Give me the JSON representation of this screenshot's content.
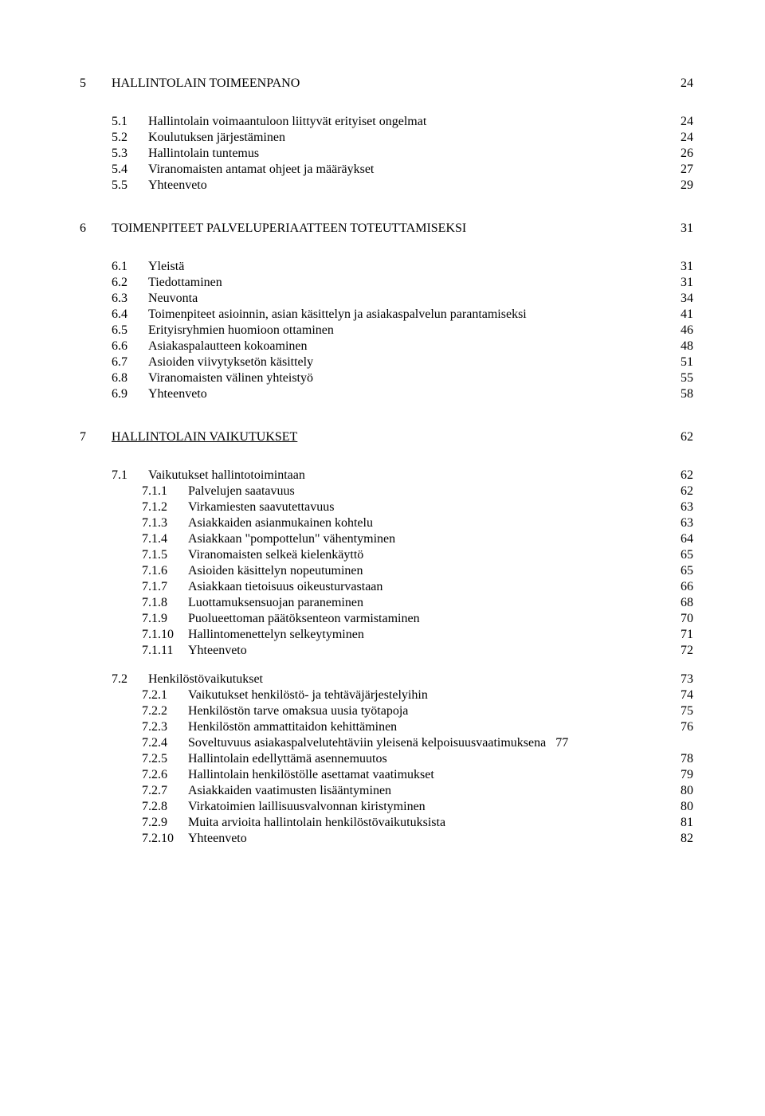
{
  "chapters": [
    {
      "num": "5",
      "title": "HALLINTOLAIN TOIMEENPANO",
      "page": "24",
      "underline": false,
      "sections": [
        {
          "num": "5.1",
          "title": "Hallintolain voimaantuloon liittyvät erityiset ongelmat",
          "page": "24"
        },
        {
          "num": "5.2",
          "title": "Koulutuksen järjestäminen",
          "page": "24"
        },
        {
          "num": "5.3",
          "title": "Hallintolain tuntemus",
          "page": "26"
        },
        {
          "num": "5.4",
          "title": "Viranomaisten antamat ohjeet ja määräykset",
          "page": "27"
        },
        {
          "num": "5.5",
          "title": "Yhteenveto",
          "page": "29"
        }
      ]
    },
    {
      "num": "6",
      "title": "TOIMENPITEET PALVELUPERIAATTEEN TOTEUTTAMISEKSI",
      "page": "31",
      "underline": false,
      "sections": [
        {
          "num": "6.1",
          "title": "Yleistä",
          "page": "31"
        },
        {
          "num": "6.2",
          "title": "Tiedottaminen",
          "page": "31"
        },
        {
          "num": "6.3",
          "title": "Neuvonta",
          "page": "34"
        },
        {
          "num": "6.4",
          "title": "Toimenpiteet asioinnin, asian käsittelyn ja asiakaspalvelun parantamiseksi",
          "page": "41"
        },
        {
          "num": "6.5",
          "title": "Erityisryhmien huomioon ottaminen",
          "page": "46"
        },
        {
          "num": "6.6",
          "title": "Asiakaspalautteen kokoaminen",
          "page": "48"
        },
        {
          "num": "6.7",
          "title": "Asioiden viivytyksetön käsittely",
          "page": "51"
        },
        {
          "num": "6.8",
          "title": "Viranomaisten välinen yhteistyö",
          "page": "55"
        },
        {
          "num": "6.9",
          "title": "Yhteenveto",
          "page": "58"
        }
      ]
    },
    {
      "num": "7",
      "title": "HALLINTOLAIN VAIKUTUKSET",
      "page": "62",
      "underline": true,
      "sections": [
        {
          "num": "7.1",
          "title": "Vaikutukset hallintotoimintaan",
          "page": "62",
          "subs": [
            {
              "num": "7.1.1",
              "title": "Palvelujen saatavuus",
              "page": "62"
            },
            {
              "num": "7.1.2",
              "title": "Virkamiesten saavutettavuus",
              "page": "63"
            },
            {
              "num": "7.1.3",
              "title": "Asiakkaiden asianmukainen kohtelu",
              "page": "63"
            },
            {
              "num": "7.1.4",
              "title": "Asiakkaan \"pompottelun\" vähentyminen",
              "page": "64"
            },
            {
              "num": "7.1.5",
              "title": "Viranomaisten selkeä kielenkäyttö",
              "page": "65"
            },
            {
              "num": "7.1.6",
              "title": "Asioiden käsittelyn nopeutuminen",
              "page": "65"
            },
            {
              "num": "7.1.7",
              "title": "Asiakkaan tietoisuus oikeusturvastaan",
              "page": "66"
            },
            {
              "num": "7.1.8",
              "title": "Luottamuksensuojan paraneminen",
              "page": "68"
            },
            {
              "num": "7.1.9",
              "title": "Puolueettoman päätöksenteon varmistaminen",
              "page": "70"
            },
            {
              "num": "7.1.10",
              "title": "Hallintomenettelyn selkeytyminen",
              "page": "71"
            },
            {
              "num": "7.1.11",
              "title": "Yhteenveto",
              "page": "72"
            }
          ]
        },
        {
          "num": "7.2",
          "title": "Henkilöstövaikutukset",
          "page": "73",
          "subs": [
            {
              "num": "7.2.1",
              "title": "Vaikutukset henkilöstö- ja tehtäväjärjestelyihin",
              "page": "74"
            },
            {
              "num": "7.2.2",
              "title": "Henkilöstön tarve omaksua uusia työtapoja",
              "page": "75"
            },
            {
              "num": "7.2.3",
              "title": "Henkilöstön ammattitaidon kehittäminen",
              "page": "76"
            },
            {
              "num": "7.2.4",
              "title": "Soveltuvuus asiakaspalvelutehtäviin yleisenä kelpoisuusvaatimuksena",
              "page": "77",
              "tight": true
            },
            {
              "num": "7.2.5",
              "title": "Hallintolain edellyttämä asennemuutos",
              "page": "78"
            },
            {
              "num": "7.2.6",
              "title": "Hallintolain henkilöstölle asettamat vaatimukset",
              "page": "79"
            },
            {
              "num": "7.2.7",
              "title": "Asiakkaiden vaatimusten lisääntyminen",
              "page": "80"
            },
            {
              "num": "7.2.8",
              "title": "Virkatoimien laillisuusvalvonnan kiristyminen",
              "page": "80"
            },
            {
              "num": "7.2.9",
              "title": "Muita arvioita hallintolain henkilöstövaikutuksista",
              "page": "81"
            },
            {
              "num": "7.2.10",
              "title": "Yhteenveto",
              "page": "82"
            }
          ]
        }
      ]
    }
  ]
}
